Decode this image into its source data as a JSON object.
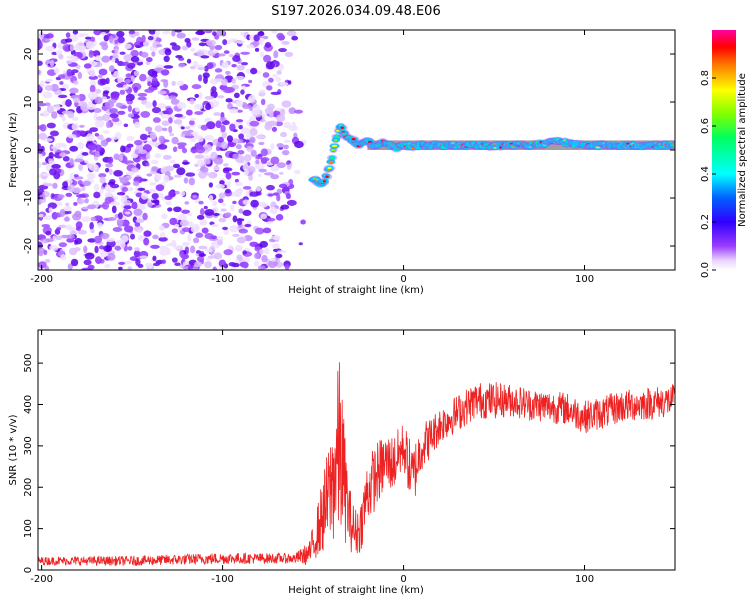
{
  "title": "S197.2026.034.09.48.E06",
  "chart_data": [
    {
      "type": "heatmap",
      "title": "S197.2026.034.09.48.E06",
      "xlabel": "Height of straight line (km)",
      "ylabel": "Frequency (Hz)",
      "xlim": [
        -202,
        150
      ],
      "ylim": [
        -25,
        25
      ],
      "xticks": [
        -200,
        -100,
        0,
        100
      ],
      "xtick_labels": [
        "-200",
        "-100",
        "0",
        "100"
      ],
      "yticks": [
        20,
        10,
        0,
        -10,
        -20
      ],
      "ytick_labels": [
        "20",
        "10",
        "0",
        "-10",
        "-20"
      ],
      "description_series": {
        "noise_region_x": [
          -202,
          -55
        ],
        "ridge": {
          "x": [
            -50,
            -45,
            -42,
            -40,
            -38,
            -35,
            -32,
            -28,
            -24,
            -20,
            -16,
            -12,
            -8,
            -4,
            0,
            5,
            10,
            20,
            30,
            40,
            50,
            60,
            70,
            80,
            85,
            90,
            100,
            110,
            120,
            130,
            140,
            150
          ],
          "frequency": [
            -6,
            -7,
            -5,
            -2,
            1,
            5,
            3,
            2,
            1,
            2,
            1,
            1.5,
            1,
            0.5,
            1,
            0.8,
            1,
            1,
            1,
            1,
            0.8,
            1,
            1,
            1.5,
            2,
            1.5,
            1,
            1,
            1,
            1,
            1,
            1
          ]
        }
      },
      "colorbar": {
        "label": "Normalized spectral amplitude",
        "range": [
          0,
          1
        ],
        "ticks": [
          0.0,
          0.2,
          0.4,
          0.6,
          0.8
        ],
        "tick_labels": [
          "0.0",
          "0.2",
          "0.4",
          "0.6",
          "0.8"
        ],
        "colormap": [
          "#ffffff",
          "#e9d3ff",
          "#9a3cff",
          "#4a00ff",
          "#1a1aff",
          "#00c8ff",
          "#00ff7f",
          "#80ff00",
          "#ffff00",
          "#ff7f00",
          "#ff0000",
          "#ff00a0"
        ]
      }
    },
    {
      "type": "line",
      "xlabel": "Height of straight line (km)",
      "ylabel": "SNR (10 * v/v)",
      "xlim": [
        -202,
        150
      ],
      "ylim": [
        0,
        580
      ],
      "xticks": [
        -200,
        -100,
        0,
        100
      ],
      "xtick_labels": [
        "-200",
        "-100",
        "0",
        "100"
      ],
      "yticks": [
        0,
        100,
        200,
        300,
        400,
        500
      ],
      "ytick_labels": [
        "0",
        "100",
        "200",
        "300",
        "400",
        "500"
      ],
      "series": [
        {
          "name": "SNR",
          "color": "#ee2222",
          "envelope": {
            "x": [
              -202,
              -150,
              -100,
              -60,
              -52,
              -48,
              -44,
              -40,
              -37,
              -35,
              -33,
              -30,
              -27,
              -24,
              -20,
              -15,
              -10,
              -5,
              0,
              5,
              10,
              15,
              20,
              30,
              40,
              50,
              60,
              70,
              80,
              90,
              100,
              110,
              120,
              130,
              140,
              150
            ],
            "mean": [
              22,
              22,
              28,
              28,
              40,
              90,
              140,
              200,
              260,
              300,
              220,
              130,
              90,
              100,
              190,
              230,
              260,
              260,
              300,
              220,
              300,
              320,
              350,
              380,
              410,
              410,
              410,
              400,
              395,
              390,
              370,
              380,
              395,
              400,
              405,
              410
            ],
            "amp": [
              10,
              12,
              14,
              12,
              30,
              60,
              100,
              140,
              200,
              240,
              150,
              80,
              60,
              60,
              80,
              80,
              70,
              70,
              60,
              80,
              60,
              50,
              45,
              45,
              45,
              45,
              40,
              40,
              40,
              40,
              40,
              40,
              40,
              40,
              40,
              40
            ]
          }
        }
      ]
    }
  ]
}
